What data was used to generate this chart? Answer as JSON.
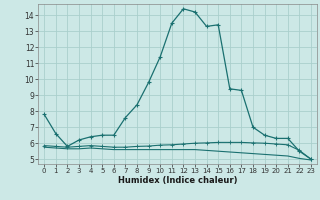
{
  "xlabel": "Humidex (Indice chaleur)",
  "background_color": "#cce8e6",
  "grid_color": "#aacfcc",
  "line_color": "#1a7070",
  "xlim": [
    -0.5,
    23.5
  ],
  "ylim": [
    4.7,
    14.7
  ],
  "yticks": [
    5,
    6,
    7,
    8,
    9,
    10,
    11,
    12,
    13,
    14
  ],
  "xticks": [
    0,
    1,
    2,
    3,
    4,
    5,
    6,
    7,
    8,
    9,
    10,
    11,
    12,
    13,
    14,
    15,
    16,
    17,
    18,
    19,
    20,
    21,
    22,
    23
  ],
  "series1_x": [
    0,
    1,
    2,
    3,
    4,
    5,
    6,
    7,
    8,
    9,
    10,
    11,
    12,
    13,
    14,
    15,
    16,
    17,
    18,
    19,
    20,
    21,
    22,
    23
  ],
  "series1_y": [
    7.8,
    6.6,
    5.8,
    6.2,
    6.4,
    6.5,
    6.5,
    7.6,
    8.4,
    9.8,
    11.4,
    13.5,
    14.4,
    14.2,
    13.3,
    13.4,
    9.4,
    9.3,
    7.0,
    6.5,
    6.3,
    6.3,
    5.5,
    5.0
  ],
  "series2_x": [
    0,
    1,
    2,
    3,
    4,
    5,
    6,
    7,
    8,
    9,
    10,
    11,
    12,
    13,
    14,
    15,
    16,
    17,
    18,
    19,
    20,
    21,
    22,
    23
  ],
  "series2_y": [
    5.85,
    5.8,
    5.75,
    5.8,
    5.85,
    5.8,
    5.75,
    5.75,
    5.8,
    5.82,
    5.88,
    5.9,
    5.95,
    6.0,
    6.02,
    6.05,
    6.05,
    6.05,
    6.02,
    6.0,
    5.95,
    5.9,
    5.55,
    5.0
  ],
  "series3_x": [
    0,
    1,
    2,
    3,
    4,
    5,
    6,
    7,
    8,
    9,
    10,
    11,
    12,
    13,
    14,
    15,
    16,
    17,
    18,
    19,
    20,
    21,
    22,
    23
  ],
  "series3_y": [
    5.75,
    5.7,
    5.65,
    5.65,
    5.7,
    5.65,
    5.6,
    5.6,
    5.6,
    5.6,
    5.6,
    5.6,
    5.6,
    5.6,
    5.55,
    5.5,
    5.45,
    5.4,
    5.35,
    5.3,
    5.25,
    5.2,
    5.05,
    4.95
  ]
}
